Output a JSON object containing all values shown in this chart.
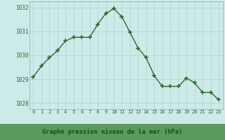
{
  "x": [
    0,
    1,
    2,
    3,
    4,
    5,
    6,
    7,
    8,
    9,
    10,
    11,
    12,
    13,
    14,
    15,
    16,
    17,
    18,
    19,
    20,
    21,
    22,
    23
  ],
  "y": [
    1029.1,
    1029.55,
    1029.9,
    1030.2,
    1030.6,
    1030.75,
    1030.75,
    1030.75,
    1031.3,
    1031.75,
    1031.95,
    1031.6,
    1030.95,
    1030.3,
    1029.9,
    1029.15,
    1028.7,
    1028.7,
    1028.7,
    1029.05,
    1028.85,
    1028.45,
    1028.45,
    1028.15
  ],
  "xlabel": "Graphe pression niveau de la mer (hPa)",
  "ylim": [
    1027.75,
    1032.25
  ],
  "xlim": [
    -0.5,
    23.5
  ],
  "yticks": [
    1028,
    1029,
    1030,
    1031,
    1032
  ],
  "xtick_labels": [
    "0",
    "1",
    "2",
    "3",
    "4",
    "5",
    "6",
    "7",
    "8",
    "9",
    "10",
    "11",
    "12",
    "13",
    "14",
    "15",
    "16",
    "17",
    "18",
    "19",
    "20",
    "21",
    "22",
    "23"
  ],
  "line_color": "#2d6a2d",
  "marker_color": "#2d6a2d",
  "bg_color": "#cceae8",
  "grid_color": "#b0d8d5",
  "tick_color": "#2d6a2d",
  "xlabel_text_color": "#1a4a1a",
  "xlabel_bg": "#5a9a5a",
  "spine_color": "#8bbcb8"
}
